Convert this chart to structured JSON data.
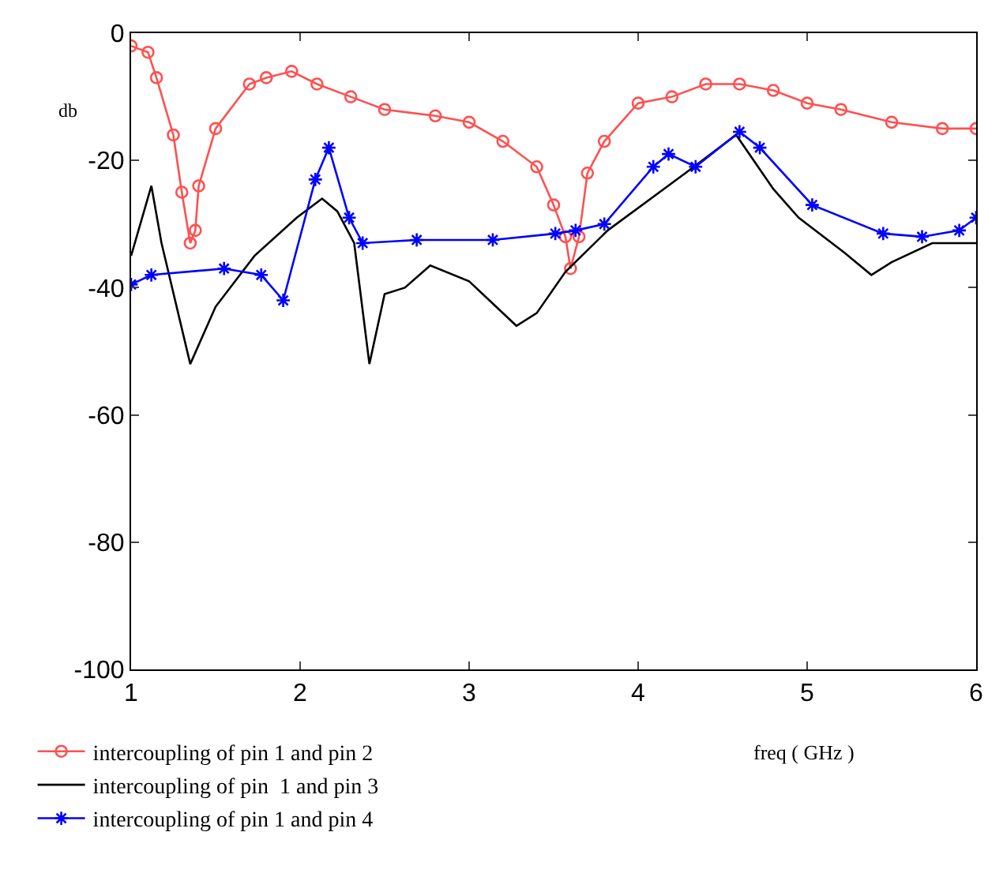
{
  "chart_data": {
    "type": "line",
    "xlabel": "freq ( GHz )",
    "ylabel": "db",
    "xlim": [
      1,
      6
    ],
    "ylim": [
      -100,
      0
    ],
    "xticks": [
      1,
      2,
      3,
      4,
      5,
      6
    ],
    "yticks": [
      -100,
      -80,
      -60,
      -40,
      -20,
      0
    ],
    "legend": "bottom left",
    "line_style": "solid",
    "series": [
      {
        "name": "intercoupling of pin 1 and pin 2",
        "color": "#ff5050",
        "marker": "circle",
        "x": [
          1.0,
          1.1,
          1.15,
          1.25,
          1.3,
          1.35,
          1.38,
          1.4,
          1.5,
          1.7,
          1.8,
          1.95,
          2.1,
          2.3,
          2.5,
          2.8,
          3.0,
          3.2,
          3.4,
          3.5,
          3.57,
          3.6,
          3.65,
          3.7,
          3.8,
          4.0,
          4.2,
          4.4,
          4.6,
          4.8,
          5.0,
          5.2,
          5.5,
          5.8,
          6.0
        ],
        "values": [
          -2,
          -3,
          -7,
          -16,
          -25,
          -33,
          -31,
          -24,
          -15,
          -8,
          -7,
          -6,
          -8,
          -10,
          -12,
          -13,
          -14,
          -17,
          -21,
          -27,
          -32,
          -37,
          -32,
          -22,
          -17,
          -11,
          -10,
          -8,
          -8,
          -9,
          -11,
          -12,
          -14,
          -15,
          -15
        ]
      },
      {
        "name": "intercoupling of pin  1 and pin 3",
        "color": "#000000",
        "marker": "none",
        "x": [
          1.0,
          1.12,
          1.18,
          1.35,
          1.5,
          1.73,
          1.98,
          2.13,
          2.22,
          2.32,
          2.41,
          2.5,
          2.62,
          2.77,
          3.0,
          3.28,
          3.4,
          3.57,
          3.82,
          4.28,
          4.58,
          4.8,
          4.95,
          5.22,
          5.38,
          5.5,
          5.74,
          5.95,
          6.0
        ],
        "values": [
          -35,
          -24,
          -33,
          -52,
          -43,
          -35,
          -29,
          -26,
          -28,
          -33,
          -52,
          -41,
          -40,
          -36.5,
          -39,
          -46,
          -44,
          -37.5,
          -31,
          -22,
          -16,
          -24.5,
          -29,
          -34.5,
          -38,
          -36,
          -33,
          -33,
          -33
        ]
      },
      {
        "name": "intercoupling of pin 1 and pin 4",
        "color": "#0000ff",
        "marker": "cross",
        "x": [
          1.0,
          1.12,
          1.55,
          1.77,
          1.9,
          2.09,
          2.17,
          2.29,
          2.37,
          2.69,
          3.14,
          3.51,
          3.63,
          3.8,
          4.09,
          4.18,
          4.34,
          4.6,
          4.72,
          5.03,
          5.45,
          5.68,
          5.9,
          6.0
        ],
        "values": [
          -39.5,
          -38,
          -37,
          -38,
          -42,
          -23,
          -18,
          -29,
          -33,
          -32.5,
          -32.5,
          -31.5,
          -31,
          -30,
          -21,
          -19,
          -21,
          -15.5,
          -18,
          -27,
          -31.5,
          -32,
          -31,
          -29
        ]
      }
    ]
  }
}
